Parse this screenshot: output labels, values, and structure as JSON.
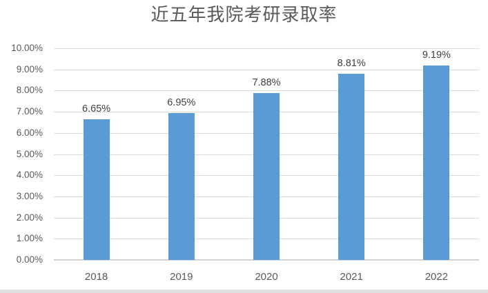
{
  "chart_data": {
    "type": "bar",
    "title": "近五年我院考研录取率",
    "categories": [
      "2018",
      "2019",
      "2020",
      "2021",
      "2022"
    ],
    "values": [
      6.65,
      6.95,
      7.88,
      8.81,
      9.19
    ],
    "value_labels": [
      "6.65%",
      "6.95%",
      "7.88%",
      "8.81%",
      "9.19%"
    ],
    "y_tick_labels": [
      "0.00%",
      "1.00%",
      "2.00%",
      "3.00%",
      "4.00%",
      "5.00%",
      "6.00%",
      "7.00%",
      "8.00%",
      "9.00%",
      "10.00%"
    ],
    "y_tick_values": [
      0,
      1,
      2,
      3,
      4,
      5,
      6,
      7,
      8,
      9,
      10
    ],
    "ylim": [
      0,
      10
    ],
    "xlabel": "",
    "ylabel": "",
    "grid": "horizontal",
    "legend": "none",
    "colors": {
      "bar": "#5b9bd5",
      "gridline": "#d9d9d9",
      "axis_line": "#d2d2d2",
      "title_text": "#595959",
      "axis_text": "#595959",
      "data_label_text": "#404040"
    }
  }
}
